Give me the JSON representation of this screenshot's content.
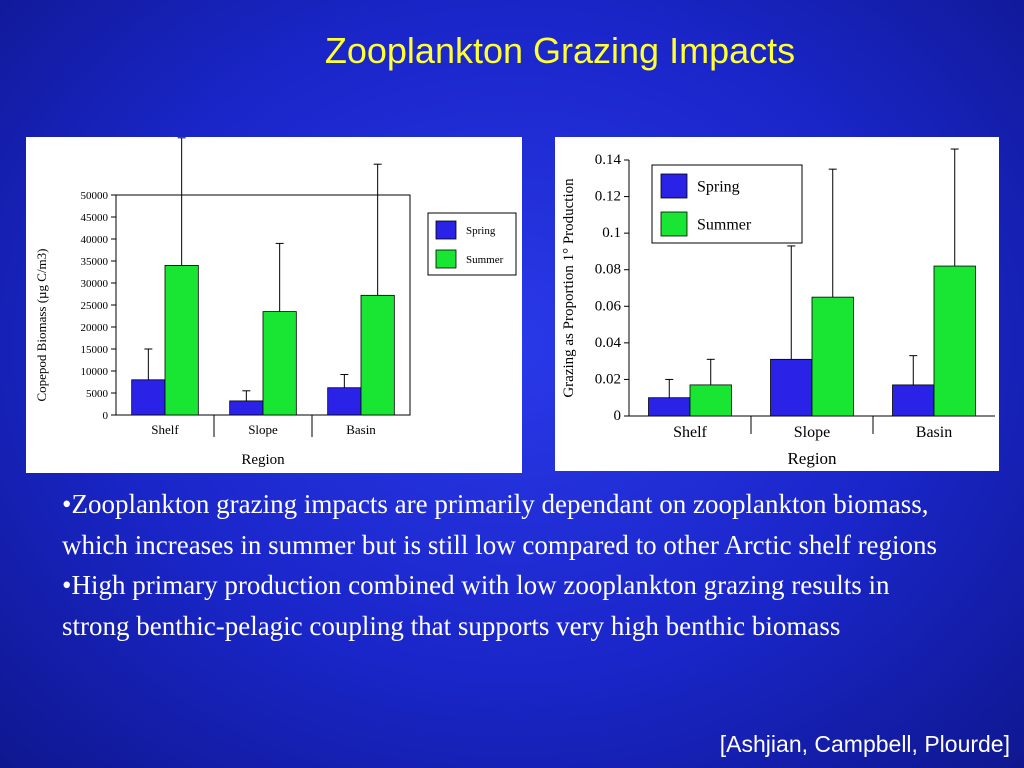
{
  "title": "Zooplankton Grazing Impacts",
  "bullets": [
    "•Zooplankton grazing impacts are primarily dependant on zooplankton biomass, which increases in summer but is still low compared to other Arctic shelf regions",
    "•High primary production combined with low zooplankton grazing results in strong benthic-pelagic coupling that supports very high benthic biomass"
  ],
  "citation": "[Ashjian, Campbell, Plourde]",
  "colors": {
    "background": "#1f2fd6",
    "title": "#ffff33",
    "spring": "#2b22e8",
    "summer": "#19e632",
    "text": "#ffffff"
  },
  "chart_data": [
    {
      "type": "bar",
      "categories": [
        "Shelf",
        "Slope",
        "Basin"
      ],
      "series": [
        {
          "name": "Spring",
          "values": [
            8000,
            3200,
            6200
          ],
          "error_upper": [
            15000,
            5500,
            9200
          ]
        },
        {
          "name": "Summer",
          "values": [
            34000,
            23500,
            27200
          ],
          "error_upper": [
            63000,
            39000,
            57000
          ]
        }
      ],
      "ylabel": "Copepod Biomass (µg C/m3)",
      "xlabel": "Region",
      "ylim": [
        0,
        50000
      ],
      "yticks": [
        "0",
        "5000",
        "10000",
        "15000",
        "20000",
        "25000",
        "30000",
        "35000",
        "40000",
        "45000",
        "50000"
      ],
      "legend": "right"
    },
    {
      "type": "bar",
      "categories": [
        "Shelf",
        "Slope",
        "Basin"
      ],
      "series": [
        {
          "name": "Spring",
          "values": [
            0.01,
            0.031,
            0.017
          ],
          "error_upper": [
            0.02,
            0.093,
            0.033
          ]
        },
        {
          "name": "Summer",
          "values": [
            0.017,
            0.065,
            0.082
          ],
          "error_upper": [
            0.031,
            0.135,
            0.146
          ]
        }
      ],
      "ylabel": "Grazing as Proportion 1° Production",
      "xlabel": "Region",
      "ylim": [
        0,
        0.14
      ],
      "yticks": [
        "0",
        "0.02",
        "0.04",
        "0.06",
        "0.08",
        "0.1",
        "0.12",
        "0.14"
      ],
      "legend": "top-left"
    }
  ]
}
